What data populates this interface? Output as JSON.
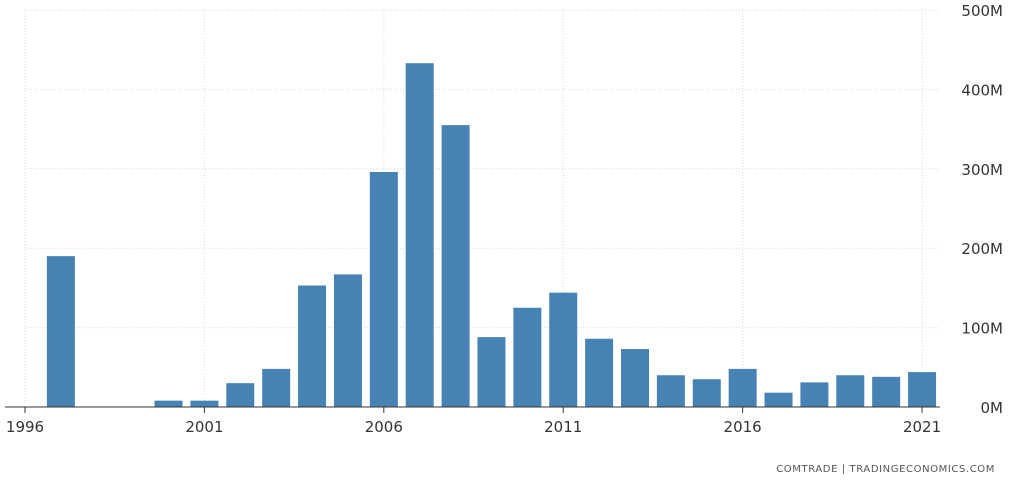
{
  "chart_data": {
    "type": "bar",
    "x": [
      1997,
      1998,
      1999,
      2000,
      2001,
      2002,
      2003,
      2004,
      2005,
      2006,
      2007,
      2008,
      2009,
      2010,
      2011,
      2012,
      2013,
      2014,
      2015,
      2016,
      2017,
      2018,
      2019,
      2020,
      2021
    ],
    "values": [
      190000000,
      0,
      0,
      8000000,
      8000000,
      30000000,
      48000000,
      153000000,
      167000000,
      296000000,
      433000000,
      355000000,
      88000000,
      125000000,
      144000000,
      86000000,
      73000000,
      40000000,
      35000000,
      48000000,
      18000000,
      31000000,
      40000000,
      38000000,
      44000000
    ],
    "xlim": [
      1996,
      2021.5
    ],
    "x_ticks": [
      "1996",
      "2001",
      "2006",
      "2011",
      "2016",
      "2021"
    ],
    "ylim": [
      0,
      500000000
    ],
    "y_ticks": [
      "0M",
      "100M",
      "200M",
      "300M",
      "400M",
      "500M"
    ],
    "y_axis_position": "right",
    "grid": true,
    "bar_color": "#4682b4",
    "title": "",
    "xlabel": "",
    "ylabel": ""
  },
  "source": "COMTRADE | TRADINGECONOMICS.COM"
}
